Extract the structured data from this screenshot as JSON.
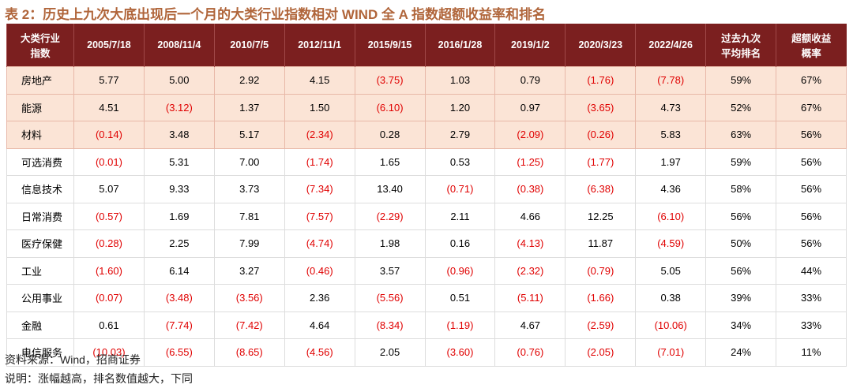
{
  "title": "表 2：历史上九次大底出现后一个月的大类行业指数相对 WIND 全 A 指数超额收益率和排名",
  "table": {
    "header": [
      "大类行业\n指数",
      "2005/7/18",
      "2008/11/4",
      "2010/7/5",
      "2012/11/1",
      "2015/9/15",
      "2016/1/28",
      "2019/1/2",
      "2020/3/23",
      "2022/4/26",
      "过去九次\n平均排名",
      "超额收益\n概率"
    ],
    "rows": [
      [
        "房地产",
        "5.77",
        "5.00",
        "2.92",
        "4.15",
        "(3.75)",
        "1.03",
        "0.79",
        "(1.76)",
        "(7.78)",
        "59%",
        "67%"
      ],
      [
        "能源",
        "4.51",
        "(3.12)",
        "1.37",
        "1.50",
        "(6.10)",
        "1.20",
        "0.97",
        "(3.65)",
        "4.73",
        "52%",
        "67%"
      ],
      [
        "材料",
        "(0.14)",
        "3.48",
        "5.17",
        "(2.34)",
        "0.28",
        "2.79",
        "(2.09)",
        "(0.26)",
        "5.83",
        "63%",
        "56%"
      ],
      [
        "可选消费",
        "(0.01)",
        "5.31",
        "7.00",
        "(1.74)",
        "1.65",
        "0.53",
        "(1.25)",
        "(1.77)",
        "1.97",
        "59%",
        "56%"
      ],
      [
        "信息技术",
        "5.07",
        "9.33",
        "3.73",
        "(7.34)",
        "13.40",
        "(0.71)",
        "(0.38)",
        "(6.38)",
        "4.36",
        "58%",
        "56%"
      ],
      [
        "日常消费",
        "(0.57)",
        "1.69",
        "7.81",
        "(7.57)",
        "(2.29)",
        "2.11",
        "4.66",
        "12.25",
        "(6.10)",
        "56%",
        "56%"
      ],
      [
        "医疗保健",
        "(0.28)",
        "2.25",
        "7.99",
        "(4.74)",
        "1.98",
        "0.16",
        "(4.13)",
        "11.87",
        "(4.59)",
        "50%",
        "56%"
      ],
      [
        "工业",
        "(1.60)",
        "6.14",
        "3.27",
        "(0.46)",
        "3.57",
        "(0.96)",
        "(2.32)",
        "(0.79)",
        "5.05",
        "56%",
        "44%"
      ],
      [
        "公用事业",
        "(0.07)",
        "(3.48)",
        "(3.56)",
        "2.36",
        "(5.56)",
        "0.51",
        "(5.11)",
        "(1.66)",
        "0.38",
        "39%",
        "33%"
      ],
      [
        "金融",
        "0.61",
        "(7.74)",
        "(7.42)",
        "4.64",
        "(8.34)",
        "(1.19)",
        "4.67",
        "(2.59)",
        "(10.06)",
        "34%",
        "33%"
      ],
      [
        "电信服务",
        "(10.03)",
        "(6.55)",
        "(8.65)",
        "(4.56)",
        "2.05",
        "(3.60)",
        "(0.76)",
        "(2.05)",
        "(7.01)",
        "24%",
        "11%"
      ]
    ]
  },
  "notes": [
    "资料来源：Wind，招商证券",
    "说明：涨幅越高，排名数值越大，下同"
  ]
}
